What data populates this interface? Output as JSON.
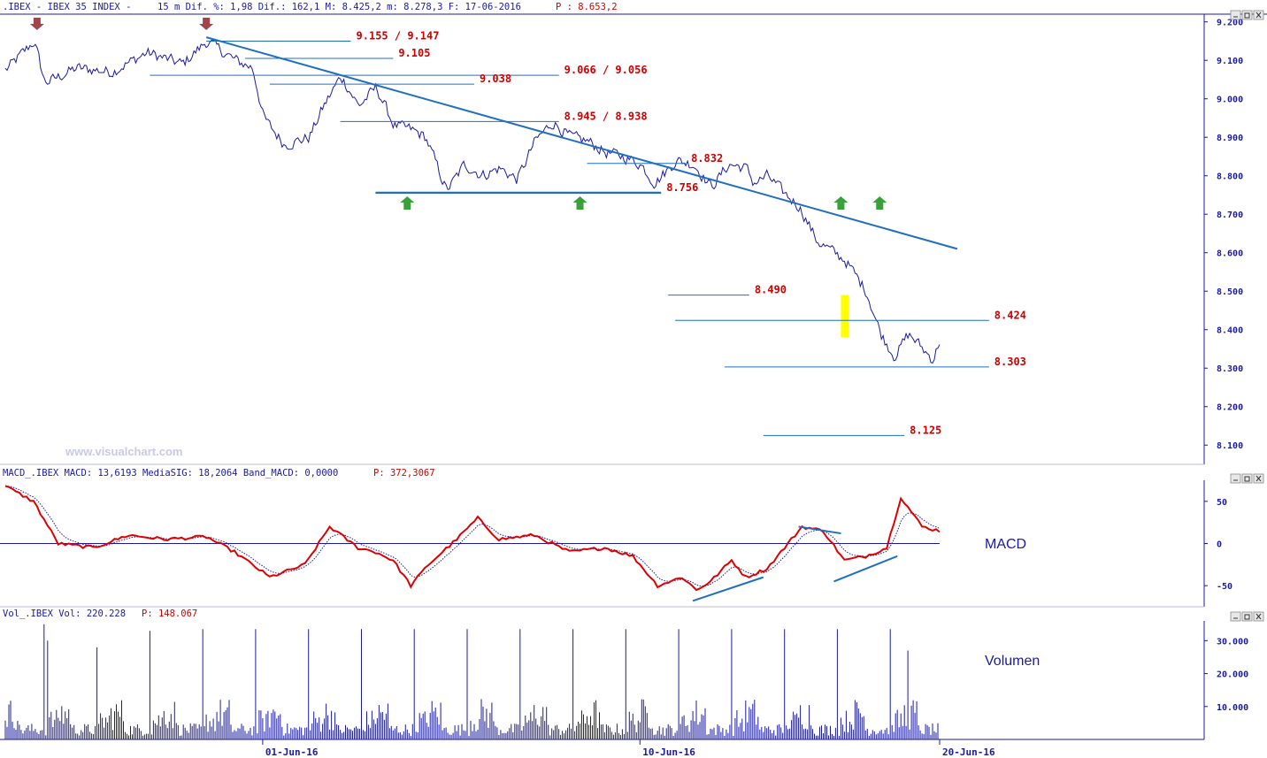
{
  "price_header": {
    "symbol": ".IBEX - IBEX 35 INDEX -",
    "stats": "15 m Dif. %: 1,98 Dif.: 162,1 M: 8.425,2 m: 8.278,3 F: 17-06-2016",
    "last": "P : 8.653,2"
  },
  "macd_header": {
    "label": "MACD_.IBEX MACD: 13,6193 MediaSIG: 18,2064 Band_MACD: 0,0000",
    "last": "P: 372,3067"
  },
  "vol_header": {
    "label": "Vol_.IBEX Vol: 220.228",
    "last": "P: 148.067"
  },
  "watermark": "www.visualchart.com",
  "macd_title": "MACD",
  "volume_title": "Volumen",
  "colors": {
    "price": "#1a1aa0",
    "trendline": "#1f6fc0",
    "level_text": "#d00000",
    "macd": "#e00000",
    "signal": "#1a1aa0",
    "arrow_down": "#a0454a",
    "arrow_up": "#3aa03a",
    "highlight": "#ffff00",
    "axis": "#1a1aa0"
  },
  "chart_data": [
    {
      "type": "line",
      "name": "price",
      "ylim": [
        8050,
        9220
      ],
      "yticks": [
        "9.200",
        "9.100",
        "9.000",
        "8.900",
        "8.800",
        "8.700",
        "8.600",
        "8.500",
        "8.400",
        "8.300",
        "8.200",
        "8.100"
      ],
      "ytick_values": [
        9200,
        9100,
        9000,
        8900,
        8800,
        8700,
        8600,
        8500,
        8400,
        8300,
        8200,
        8100
      ],
      "xticks": [
        "01-Jun-16",
        "10-Jun-16",
        "20-Jun-16"
      ],
      "xtick_bar": [
        73,
        180,
        265
      ],
      "n_bars": 265,
      "anchors": [
        [
          0,
          9075
        ],
        [
          8,
          9150
        ],
        [
          11,
          9040
        ],
        [
          20,
          9080
        ],
        [
          30,
          9070
        ],
        [
          40,
          9120
        ],
        [
          50,
          9090
        ],
        [
          57,
          9150
        ],
        [
          65,
          9100
        ],
        [
          70,
          9080
        ],
        [
          73,
          8950
        ],
        [
          79,
          8880
        ],
        [
          86,
          8900
        ],
        [
          90,
          8980
        ],
        [
          95,
          9060
        ],
        [
          100,
          8980
        ],
        [
          105,
          9030
        ],
        [
          110,
          8930
        ],
        [
          115,
          8920
        ],
        [
          119,
          8900
        ],
        [
          125,
          8760
        ],
        [
          130,
          8830
        ],
        [
          135,
          8800
        ],
        [
          140,
          8820
        ],
        [
          145,
          8790
        ],
        [
          150,
          8890
        ],
        [
          155,
          8940
        ],
        [
          160,
          8900
        ],
        [
          165,
          8890
        ],
        [
          170,
          8860
        ],
        [
          175,
          8850
        ],
        [
          180,
          8830
        ],
        [
          184,
          8780
        ],
        [
          190,
          8840
        ],
        [
          195,
          8830
        ],
        [
          200,
          8770
        ],
        [
          205,
          8830
        ],
        [
          210,
          8820
        ],
        [
          212,
          8780
        ],
        [
          216,
          8800
        ],
        [
          220,
          8760
        ],
        [
          225,
          8720
        ],
        [
          230,
          8630
        ],
        [
          238,
          8580
        ],
        [
          244,
          8500
        ],
        [
          248,
          8390
        ],
        [
          252,
          8330
        ],
        [
          256,
          8390
        ],
        [
          259,
          8360
        ],
        [
          263,
          8320
        ],
        [
          265,
          8380
        ]
      ],
      "levels": [
        {
          "label": "9.155 / 9.147",
          "value": 9150
        },
        {
          "label": "9.105",
          "value": 9105
        },
        {
          "label": "9.066 / 9.056",
          "value": 9061
        },
        {
          "label": "9.038",
          "value": 9038
        },
        {
          "label": "8.945 / 8.938",
          "value": 8941
        },
        {
          "label": "8.832",
          "value": 8832
        },
        {
          "label": "8.756",
          "value": 8756
        },
        {
          "label": "8.490",
          "value": 8490
        },
        {
          "label": "8.424",
          "value": 8424
        },
        {
          "label": "8.303",
          "value": 8303
        },
        {
          "label": "8.125",
          "value": 8125
        }
      ],
      "trendline": [
        [
          57,
          9160
        ],
        [
          270,
          8610
        ]
      ],
      "arrows_down": [
        9,
        57
      ],
      "arrows_up": [
        114,
        163,
        237,
        248
      ]
    },
    {
      "type": "line",
      "name": "MACD",
      "ylim": [
        -75,
        75
      ],
      "yticks": [
        "50",
        "0",
        "-50"
      ],
      "ytick_values": [
        50,
        0,
        -50
      ],
      "series": [
        {
          "name": "MACD",
          "anchors": [
            [
              0,
              68
            ],
            [
              8,
              50
            ],
            [
              15,
              0
            ],
            [
              25,
              -5
            ],
            [
              35,
              10
            ],
            [
              45,
              5
            ],
            [
              57,
              8
            ],
            [
              65,
              -10
            ],
            [
              75,
              -40
            ],
            [
              85,
              -25
            ],
            [
              92,
              20
            ],
            [
              100,
              -5
            ],
            [
              105,
              -10
            ],
            [
              110,
              -20
            ],
            [
              115,
              -50
            ],
            [
              120,
              -25
            ],
            [
              128,
              5
            ],
            [
              134,
              30
            ],
            [
              140,
              5
            ],
            [
              150,
              10
            ],
            [
              160,
              -10
            ],
            [
              170,
              -5
            ],
            [
              178,
              -15
            ],
            [
              185,
              -50
            ],
            [
              192,
              -40
            ],
            [
              196,
              -55
            ],
            [
              200,
              -45
            ],
            [
              206,
              -20
            ],
            [
              210,
              -40
            ],
            [
              216,
              -30
            ],
            [
              222,
              0
            ],
            [
              226,
              20
            ],
            [
              232,
              15
            ],
            [
              238,
              -20
            ],
            [
              244,
              -15
            ],
            [
              250,
              -5
            ],
            [
              254,
              55
            ],
            [
              260,
              20
            ],
            [
              265,
              15
            ]
          ]
        }
      ],
      "trendlines": [
        {
          "from": [
            195,
            -68
          ],
          "to": [
            215,
            -40
          ]
        },
        {
          "from": [
            225,
            20
          ],
          "to": [
            237,
            12
          ]
        },
        {
          "from": [
            235,
            -45
          ],
          "to": [
            253,
            -15
          ]
        }
      ]
    },
    {
      "type": "bar",
      "name": "Volume",
      "ylim": [
        0,
        36000
      ],
      "yticks": [
        "30.000",
        "20.000",
        "10.000"
      ],
      "ytick_values": [
        30000,
        20000,
        10000
      ],
      "spikes": [
        [
          11,
          35000
        ],
        [
          12,
          30000
        ],
        [
          26,
          28000
        ],
        [
          41,
          33000
        ],
        [
          56,
          33500
        ],
        [
          71,
          33500
        ],
        [
          86,
          33500
        ],
        [
          101,
          33500
        ],
        [
          116,
          33500
        ],
        [
          131,
          33500
        ],
        [
          146,
          33500
        ],
        [
          161,
          33500
        ],
        [
          176,
          33500
        ],
        [
          191,
          33500
        ],
        [
          206,
          33500
        ],
        [
          221,
          33500
        ],
        [
          236,
          33500
        ],
        [
          251,
          33500
        ],
        [
          256,
          27000
        ],
        [
          265,
          33000
        ]
      ]
    }
  ]
}
